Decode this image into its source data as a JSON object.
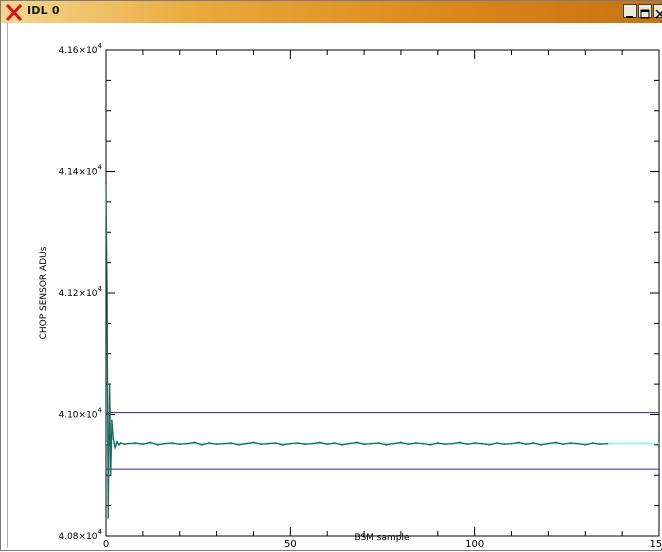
{
  "window": {
    "title": "IDL 0",
    "icons": {
      "app": "idl-x-icon",
      "minimize": "minimize-icon",
      "maximize": "maximize-icon",
      "close": "close-icon"
    }
  },
  "colors": {
    "titlebar": "#e09a30",
    "axis": "#000000",
    "data": "#1a6a5a",
    "threshold": "#2b2b8c",
    "mean": "#7fffe0"
  },
  "chart_data": {
    "type": "line",
    "title": "",
    "xlabel": "BSM sample",
    "ylabel": "CHOP SENSOR ADUs",
    "xlim": [
      0,
      150
    ],
    "ylim": [
      40800,
      41600
    ],
    "x_ticks": [
      {
        "value": 0,
        "label": "0"
      },
      {
        "value": 50,
        "label": "50"
      },
      {
        "value": 100,
        "label": "100"
      },
      {
        "value": 150,
        "label": "150"
      }
    ],
    "y_ticks": [
      {
        "value": 40800,
        "mantissa": "4.08×10",
        "exp": "4"
      },
      {
        "value": 41000,
        "mantissa": "4.10×10",
        "exp": "4"
      },
      {
        "value": 41200,
        "mantissa": "4.12×10",
        "exp": "4"
      },
      {
        "value": 41400,
        "mantissa": "4.14×10",
        "exp": "4"
      },
      {
        "value": 41600,
        "mantissa": "4.16×10",
        "exp": "4"
      }
    ],
    "grid": false,
    "series": [
      {
        "x": [
          0,
          0.3,
          0.6,
          1.0,
          1.3,
          1.6,
          2.0,
          2.5,
          3.0,
          3.5,
          4.0,
          5.0,
          6.0,
          8.0,
          10,
          12,
          14,
          16,
          18,
          20,
          22,
          24,
          26,
          28,
          30,
          32,
          34,
          36,
          38,
          40,
          42,
          44,
          46,
          48,
          50,
          52,
          54,
          56,
          58,
          60,
          62,
          64,
          66,
          68,
          70,
          72,
          74,
          76,
          78,
          80,
          82,
          84,
          86,
          88,
          90,
          92,
          94,
          96,
          98,
          100,
          102,
          104,
          106,
          108,
          110,
          112,
          114,
          116,
          118,
          120,
          122,
          124,
          126,
          128,
          130,
          132,
          134,
          136
        ],
        "y": [
          41380,
          41200,
          40830,
          41050,
          40900,
          40990,
          40960,
          40945,
          40955,
          40950,
          40953,
          40951,
          40952,
          40953,
          40951,
          40954,
          40950,
          40952,
          40953,
          40951,
          40952,
          40954,
          40950,
          40953,
          40951,
          40952,
          40953,
          40950,
          40952,
          40954,
          40951,
          40952,
          40953,
          40950,
          40952,
          40953,
          40951,
          40952,
          40954,
          40951,
          40953,
          40950,
          40952,
          40954,
          40951,
          40952,
          40953,
          40950,
          40952,
          40954,
          40951,
          40953,
          40952,
          40950,
          40953,
          40951,
          40952,
          40954,
          40951,
          40953,
          40952,
          40950,
          40953,
          40951,
          40952,
          40954,
          40951,
          40953,
          40950,
          40952,
          40954,
          40951,
          40953,
          40952,
          40950,
          40953,
          40951,
          40952
        ]
      }
    ],
    "hlines": [
      {
        "role": "upper-threshold",
        "y": 41003
      },
      {
        "role": "mean",
        "y": 40952
      },
      {
        "role": "lower-threshold",
        "y": 40910
      }
    ]
  }
}
